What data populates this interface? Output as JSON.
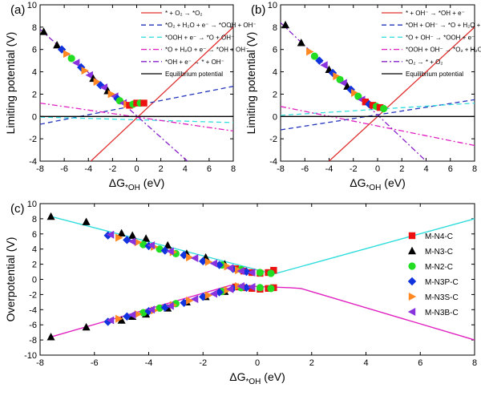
{
  "chart_data": [
    {
      "panel_label": "(a)",
      "type": "line",
      "xlabel": "ΔG*OH (eV)",
      "ylabel": "Limiting potential (V)",
      "xlim": [
        -8,
        8
      ],
      "ylim": [
        -4,
        10
      ],
      "xticks": [
        -8,
        -6,
        -4,
        -2,
        0,
        2,
        4,
        6,
        8
      ],
      "yticks": [
        -4,
        -2,
        0,
        2,
        4,
        6,
        8,
        10
      ],
      "legend_position": "top-right",
      "lines": [
        {
          "name": "* + O₂ → *O₂",
          "color": "#e03030",
          "dash": "solid",
          "x": [
            -3.8,
            8
          ],
          "y": [
            -4,
            8
          ]
        },
        {
          "name": "*O₂ + H₂O + e⁻ → *OOH + OH⁻",
          "color": "#2233bb",
          "dash": "dash",
          "x": [
            -8,
            8
          ],
          "y": [
            -0.7,
            2.7
          ]
        },
        {
          "name": "*OOH + e⁻ → *O + OH⁻",
          "color": "#33dddd",
          "dash": "dash",
          "x": [
            -8,
            8
          ],
          "y": [
            -0.05,
            -0.55
          ]
        },
        {
          "name": "*O + H₂O + e⁻ → *OH + OH⁻",
          "color": "#e020c0",
          "dash": "dashdot",
          "x": [
            -8,
            8
          ],
          "y": [
            1.2,
            -1.3
          ]
        },
        {
          "name": "*OH + e⁻ → * + OH⁻",
          "color": "#8822cc",
          "dash": "dashdot",
          "x": [
            -8,
            4.2
          ],
          "y": [
            7.8,
            -4
          ]
        },
        {
          "name": "Equilibrium potential",
          "color": "#000000",
          "dash": "solid",
          "x": [
            -8,
            8
          ],
          "y": [
            0,
            0
          ]
        }
      ],
      "points": {
        "x": [
          -7.7,
          -6.6,
          -6.2,
          -5.8,
          -5.4,
          -5.0,
          -4.6,
          -4.3,
          -3.9,
          -3.6,
          -3.3,
          -3.0,
          -2.7,
          -2.4,
          -2.1,
          -1.8,
          -1.6,
          -1.4,
          -1.1,
          -0.8,
          -0.6,
          -0.3,
          0.0,
          0.3,
          0.6
        ],
        "y": [
          7.6,
          6.4,
          6.0,
          5.6,
          5.2,
          4.8,
          4.4,
          4.1,
          3.7,
          3.4,
          3.1,
          2.8,
          2.6,
          2.3,
          2.0,
          1.8,
          1.6,
          1.4,
          1.2,
          1.1,
          1.0,
          1.1,
          1.2,
          1.2,
          1.2
        ],
        "series_index": [
          1,
          1,
          3,
          4,
          2,
          5,
          3,
          4,
          5,
          1,
          4,
          3,
          5,
          1,
          4,
          5,
          3,
          2,
          5,
          4,
          0,
          2,
          0,
          2,
          0
        ]
      }
    },
    {
      "panel_label": "(b)",
      "type": "line",
      "xlabel": "ΔG*OH (eV)",
      "ylabel": "Limiting potential (V)",
      "xlim": [
        -8,
        8
      ],
      "ylim": [
        -4,
        10
      ],
      "xticks": [
        -8,
        -6,
        -4,
        -2,
        0,
        2,
        4,
        6,
        8
      ],
      "yticks": [
        -4,
        -2,
        0,
        2,
        4,
        6,
        8,
        10
      ],
      "legend_position": "top-right",
      "lines": [
        {
          "name": "* + OH⁻ → *OH + e⁻",
          "color": "#e03030",
          "dash": "solid",
          "x": [
            -4,
            8
          ],
          "y": [
            -4,
            8
          ]
        },
        {
          "name": "*OH + OH⁻ → *O + H₂O + e⁻",
          "color": "#2233bb",
          "dash": "dash",
          "x": [
            -8,
            8
          ],
          "y": [
            -1.2,
            1.5
          ]
        },
        {
          "name": "*O + OH⁻ → *OOH + e⁻",
          "color": "#33dddd",
          "dash": "dash",
          "x": [
            -8,
            8
          ],
          "y": [
            0.1,
            1.2
          ]
        },
        {
          "name": "*OOH + OH⁻ → *O₂ + H₂O + e⁻",
          "color": "#e020c0",
          "dash": "dashdot",
          "x": [
            -8,
            8
          ],
          "y": [
            0.9,
            -2.6
          ]
        },
        {
          "name": "*O₂ → * + O₂",
          "color": "#8822cc",
          "dash": "dashdot",
          "x": [
            -8,
            4
          ],
          "y": [
            8.4,
            -4
          ]
        },
        {
          "name": "Equilibrium potential",
          "color": "#000000",
          "dash": "solid",
          "x": [
            -8,
            8
          ],
          "y": [
            0,
            0
          ]
        }
      ],
      "points": {
        "x": [
          -7.6,
          -6.3,
          -5.6,
          -5.2,
          -4.8,
          -4.4,
          -4.0,
          -3.7,
          -3.4,
          -3.1,
          -2.8,
          -2.5,
          -2.2,
          -1.9,
          -1.6,
          -1.3,
          -1.0,
          -0.7,
          -0.4,
          -0.1,
          0.2,
          0.5
        ],
        "y": [
          8.2,
          6.6,
          5.8,
          5.4,
          5.0,
          4.6,
          4.2,
          3.9,
          3.6,
          3.3,
          3.0,
          2.7,
          2.4,
          2.1,
          1.8,
          1.5,
          1.3,
          1.1,
          1.0,
          0.9,
          0.8,
          0.7
        ],
        "series_index": [
          1,
          1,
          4,
          2,
          3,
          5,
          1,
          3,
          4,
          2,
          5,
          1,
          3,
          4,
          2,
          5,
          0,
          3,
          0,
          2,
          0,
          2
        ]
      }
    },
    {
      "panel_label": "(c)",
      "type": "scatter",
      "xlabel": "ΔG*OH (eV)",
      "ylabel": "Overpotential (V)",
      "xlim": [
        -8,
        8
      ],
      "ylim": [
        -10,
        10
      ],
      "xticks": [
        -8,
        -6,
        -4,
        -2,
        0,
        2,
        4,
        6,
        8
      ],
      "yticks": [
        -10,
        -8,
        -6,
        -4,
        -2,
        0,
        2,
        4,
        6,
        8,
        10
      ],
      "legend_position": "right",
      "series": [
        {
          "name": "M-N4-C",
          "color": "#ee1111",
          "marker": "square",
          "x": [
            -0.8,
            -0.5,
            -0.2,
            0.1,
            0.4,
            0.6,
            -0.8,
            -0.5,
            -0.2,
            0.1,
            0.4,
            0.6
          ],
          "y": [
            1.4,
            1.1,
            0.9,
            0.8,
            0.9,
            1.2,
            -1.0,
            -1.1,
            -1.2,
            -1.3,
            -1.2,
            -1.1
          ]
        },
        {
          "name": "M-N3-C",
          "color": "#000000",
          "marker": "triangle-up",
          "x": [
            -7.6,
            -6.3,
            -5.0,
            -4.6,
            -4.1,
            -3.3,
            -2.6,
            -1.9,
            -1.2,
            -7.6,
            -6.3,
            -5.0,
            -4.6,
            -4.1,
            -3.3,
            -2.6,
            -1.9,
            -1.2
          ],
          "y": [
            8.3,
            7.6,
            6.1,
            5.8,
            5.4,
            4.5,
            3.4,
            2.9,
            2.0,
            -7.6,
            -6.3,
            -5.4,
            -4.9,
            -4.6,
            -3.8,
            -3.0,
            -2.3,
            -1.6
          ]
        },
        {
          "name": "M-N2-C",
          "color": "#22dd22",
          "marker": "circle",
          "x": [
            -4.2,
            -3.6,
            -3.0,
            -1.3,
            -0.6,
            0.1,
            0.5,
            -4.2,
            -3.6,
            -3.0,
            -1.3,
            -0.6,
            0.1,
            0.5
          ],
          "y": [
            4.6,
            4.0,
            3.4,
            1.9,
            1.3,
            0.9,
            0.8,
            -4.4,
            -3.8,
            -3.2,
            -1.6,
            -1.1,
            -1.1,
            -1.2
          ]
        },
        {
          "name": "M-N3P-C",
          "color": "#1133dd",
          "marker": "diamond",
          "x": [
            -5.5,
            -4.8,
            -4.0,
            -3.4,
            -2.7,
            -2.0,
            -1.4,
            -0.9,
            -0.4,
            -5.5,
            -4.8,
            -4.0,
            -3.4,
            -2.7,
            -2.0,
            -1.4,
            -0.9,
            -0.4
          ],
          "y": [
            5.8,
            5.2,
            4.4,
            3.8,
            3.2,
            2.4,
            1.9,
            1.4,
            1.0,
            -5.6,
            -4.9,
            -4.2,
            -3.7,
            -3.1,
            -2.3,
            -1.7,
            -1.2,
            -1.1
          ]
        },
        {
          "name": "M-N3S-C",
          "color": "#ff8822",
          "marker": "triangle-right",
          "x": [
            -5.1,
            -4.4,
            -3.8,
            -3.1,
            -2.5,
            -1.8,
            -1.1,
            -0.7,
            -5.1,
            -4.4,
            -3.8,
            -3.1,
            -2.5,
            -1.8,
            -1.1,
            -0.7
          ],
          "y": [
            5.5,
            4.9,
            4.3,
            3.6,
            2.9,
            2.3,
            1.7,
            1.2,
            -5.2,
            -4.6,
            -4.1,
            -3.4,
            -2.8,
            -2.1,
            -1.4,
            -0.9
          ]
        },
        {
          "name": "M-N3B-C",
          "color": "#8833dd",
          "marker": "triangle-left",
          "x": [
            -5.4,
            -4.6,
            -3.9,
            -3.2,
            -2.3,
            -1.6,
            -1.0,
            -0.6,
            -0.2,
            -5.4,
            -4.6,
            -3.9,
            -3.2,
            -2.3,
            -1.6,
            -1.0,
            -0.6,
            -0.2
          ],
          "y": [
            5.9,
            5.0,
            4.5,
            3.7,
            2.8,
            2.1,
            1.5,
            1.1,
            0.9,
            -5.4,
            -4.7,
            -4.0,
            -3.5,
            -2.6,
            -1.9,
            -1.3,
            -0.9,
            -1.0
          ]
        }
      ],
      "lines": [
        {
          "color": "#33dddd",
          "x": [
            -7.6,
            0.6,
            8
          ],
          "y": [
            8.3,
            0.7,
            8.0
          ]
        },
        {
          "color": "#e020c0",
          "x": [
            -7.6,
            -1.0,
            1.2,
            1.6,
            8
          ],
          "y": [
            -7.6,
            -0.8,
            -1.1,
            -1.2,
            -8.0
          ]
        }
      ]
    }
  ]
}
